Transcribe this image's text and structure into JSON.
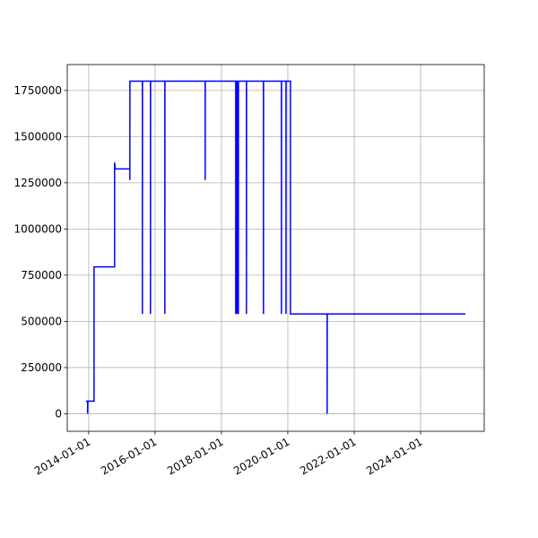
{
  "chart_data": {
    "type": "line",
    "x": [
      "2013-12-02",
      "2013-12-20",
      "2013-12-20",
      "2013-12-21",
      "2014-03-01",
      "2014-03-01",
      "2014-10-13",
      "2014-10-13",
      "2014-10-20",
      "2015-03-30",
      "2015-03-30",
      "2015-03-31",
      "2015-08-15",
      "2015-08-15",
      "2015-08-16",
      "2015-11-12",
      "2015-11-12",
      "2015-11-13",
      "2016-04-18",
      "2016-04-18",
      "2016-04-19",
      "2017-07-06",
      "2017-07-06",
      "2017-07-07",
      "2018-06-07",
      "2018-06-07",
      "2018-06-08",
      "2018-06-21",
      "2018-06-21",
      "2018-06-22",
      "2018-07-06",
      "2018-07-06",
      "2018-07-07",
      "2018-10-03",
      "2018-10-03",
      "2018-10-04",
      "2019-04-08",
      "2019-04-08",
      "2019-04-09",
      "2019-10-23",
      "2019-10-23",
      "2019-10-24",
      "2019-12-12",
      "2019-12-12",
      "2019-12-13",
      "2020-01-30",
      "2020-01-30",
      "2021-03-09",
      "2021-03-09",
      "2021-03-10",
      "2025-05-08"
    ],
    "values": [
      68000,
      68000,
      0,
      68000,
      68000,
      795000,
      795000,
      1360000,
      1325000,
      1325000,
      1265000,
      1800000,
      1800000,
      540000,
      1800000,
      1800000,
      540000,
      1800000,
      1800000,
      540000,
      1800000,
      1800000,
      1265000,
      1800000,
      1800000,
      540000,
      1800000,
      1800000,
      540000,
      1800000,
      1800000,
      540000,
      1800000,
      1800000,
      540000,
      1800000,
      1800000,
      540000,
      1800000,
      1800000,
      540000,
      1800000,
      1800000,
      540000,
      1800000,
      1800000,
      540000,
      540000,
      0,
      540000,
      540000
    ],
    "color": "#0000ff",
    "xlim": [
      "2013-05-10",
      "2025-12-01"
    ],
    "xticks": [
      "2014-01-01",
      "2016-01-01",
      "2018-01-01",
      "2020-01-01",
      "2022-01-01",
      "2024-01-01"
    ],
    "ylim": [
      -95000,
      1890000
    ],
    "yticks": [
      0,
      250000,
      500000,
      750000,
      1000000,
      1250000,
      1500000,
      1750000
    ],
    "grid": true
  }
}
